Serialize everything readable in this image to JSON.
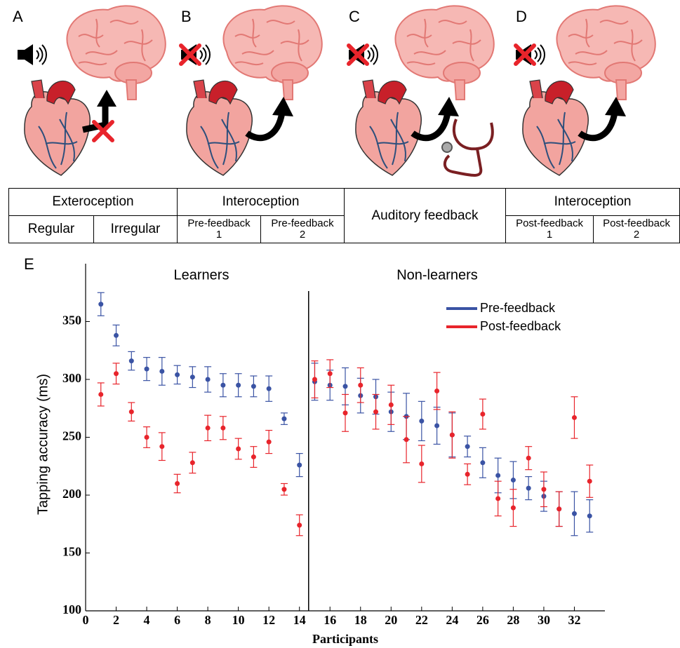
{
  "panels": [
    "A",
    "B",
    "C",
    "D"
  ],
  "table": {
    "row1": [
      "Exteroception",
      "Interoception",
      "Auditory feedback",
      "Interoception"
    ],
    "row2": [
      "Regular",
      "Irregular",
      "Pre-feedback\n1",
      "Pre-feedback\n2",
      "Post-feedback\n1",
      "Post-feedback\n2"
    ]
  },
  "chart_data": {
    "type": "scatter",
    "panel_label": "E",
    "x_label": "Participants",
    "y_label": "Tapping accuracy (ms)",
    "annotations": [
      "Learners",
      "Non-learners"
    ],
    "divider_x": 14.6,
    "x": [
      1,
      2,
      3,
      4,
      5,
      6,
      7,
      8,
      9,
      10,
      11,
      12,
      13,
      14,
      15,
      16,
      17,
      18,
      19,
      20,
      21,
      22,
      23,
      24,
      25,
      26,
      27,
      28,
      29,
      30,
      31,
      32,
      33
    ],
    "series": [
      {
        "name": "Pre-feedback",
        "color": "#3a53a4",
        "values": [
          365,
          338,
          316,
          309,
          307,
          304,
          302,
          300,
          295,
          295,
          294,
          292,
          266,
          226,
          298,
          295,
          294,
          286,
          285,
          272,
          268,
          264,
          260,
          252,
          242,
          228,
          217,
          213,
          206,
          199,
          188,
          184,
          182
        ],
        "errors": [
          10,
          9,
          8,
          10,
          12,
          8,
          9,
          11,
          10,
          10,
          9,
          11,
          5,
          10,
          16,
          13,
          16,
          15,
          15,
          17,
          20,
          17,
          16,
          19,
          9,
          13,
          15,
          16,
          10,
          13,
          15,
          19,
          14
        ]
      },
      {
        "name": "Post-feedback",
        "color": "#e8242b",
        "values": [
          287,
          305,
          272,
          250,
          242,
          210,
          228,
          258,
          258,
          240,
          233,
          246,
          205,
          174,
          300,
          305,
          271,
          295,
          272,
          278,
          248,
          227,
          290,
          252,
          218,
          270,
          197,
          189,
          232,
          205,
          188,
          267,
          212
        ],
        "errors": [
          10,
          9,
          8,
          9,
          12,
          8,
          9,
          11,
          10,
          9,
          9,
          10,
          5,
          9,
          16,
          12,
          16,
          15,
          15,
          17,
          20,
          16,
          16,
          20,
          9,
          13,
          15,
          16,
          10,
          15,
          15,
          18,
          14
        ]
      }
    ],
    "xlim": [
      0,
      34
    ],
    "ylim": [
      100,
      400
    ],
    "xticks": [
      0,
      2,
      4,
      6,
      8,
      10,
      12,
      14,
      16,
      18,
      20,
      22,
      24,
      26,
      28,
      30,
      32
    ],
    "yticks": [
      100,
      150,
      200,
      250,
      300,
      350
    ],
    "legend": "upper-right"
  }
}
